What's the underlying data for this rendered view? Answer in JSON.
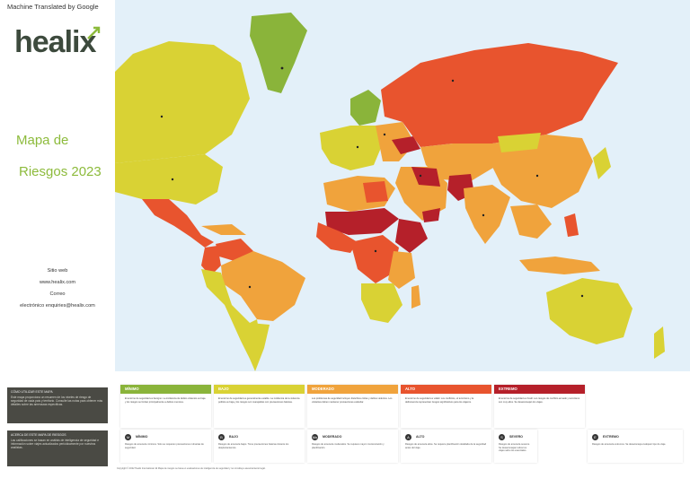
{
  "header": {
    "translation_note": "Machine Translated by Google",
    "logo_text": "healix"
  },
  "title": {
    "line1": "Mapa de",
    "line2": "Riesgos 2023"
  },
  "contact": {
    "site_label": "Sitio web",
    "site_url": "www.healix.com",
    "email_label": "Correo",
    "email_value": "electrónico enquiries@healix.com"
  },
  "info_boxes": [
    {
      "heading": "CÓMO UTILIZAR ESTE MAPA",
      "text": "Este mapa proporciona un resumen de los niveles de riesgo de seguridad de cada país y territorio. Consulte las notas para obtener más detalles sobre las amenazas específicas."
    },
    {
      "heading": "ACERCA DE ESTE MAPA DE RIESGOS",
      "text": "Las calificaciones se basan en análisis de inteligencia de seguridad e información sobre viajes actualizados periódicamente por nuestros analistas."
    }
  ],
  "risk_levels": [
    {
      "name": "MÍNIMO",
      "color": "#8ab43a",
      "text": "El entorno de seguridad es benigno. La incidencia de delitos violentos es baja y los riesgos se limitan principalmente a delitos menores."
    },
    {
      "name": "BAJO",
      "color": "#d9d234",
      "text": "El entorno de seguridad es generalmente estable. La incidencia de la violencia política es baja y los riesgos son manejables con precauciones básicas."
    },
    {
      "name": "MODERADO",
      "color": "#f0a33c",
      "text": "Los problemas de seguridad incluyen disturbios civiles y delitos violentos. Los visitantes deben mantener precauciones estándar."
    },
    {
      "name": "ALTO",
      "color": "#e8542e",
      "text": "El entorno de seguridad es volátil. Los conflictos, el terrorismo y la delincuencia representan riesgos significativos para los viajeros."
    },
    {
      "name": "EXTREMO",
      "color": "#b5202a",
      "text": "El entorno de seguridad es hostil. Los riesgos de conflicto armado y terrorismo son muy altos. Se desaconsejan los viajes."
    }
  ],
  "threat_icons": [
    {
      "symbol": "M",
      "name": "MÍNIMO",
      "text": "Riesgos de amenaza mínimos. Solo se requieren precauciones rutinarias de seguridad."
    },
    {
      "symbol": "B",
      "name": "BAJO",
      "text": "Riesgos de amenaza bajos. Tome precauciones básicas durante los desplazamientos."
    },
    {
      "symbol": "Mo",
      "name": "MODERADO",
      "text": "Riesgos de amenaza moderados. Se requiere mayor concienciación y planificación."
    },
    {
      "symbol": "A",
      "name": "ALTO",
      "text": "Riesgos de amenaza altos. Se requiere planificación detallada de la seguridad antes del viaje."
    },
    {
      "symbol": "S",
      "name": "SEVERO",
      "text": "Riesgos de amenaza severos. Se desaconsejan todos los viajes salvo los esenciales."
    },
    {
      "symbol": "E",
      "name": "EXTREMO",
      "text": "Riesgos de amenaza extremos. Se desaconseja cualquier tipo de viaje."
    }
  ],
  "footer": {
    "text": "Copyright © 2022 Healix International. El Mapa de riesgos se basa en evaluaciones de inteligencia de seguridad y no constituye asesoramiento legal."
  },
  "colors": {
    "ocean": "#e3f0f9",
    "minimal": "#8ab43a",
    "low": "#d9d234",
    "moderate": "#f0a33c",
    "high": "#e8542e",
    "extreme": "#b5202a",
    "brand_green": "#8dbb3c"
  }
}
